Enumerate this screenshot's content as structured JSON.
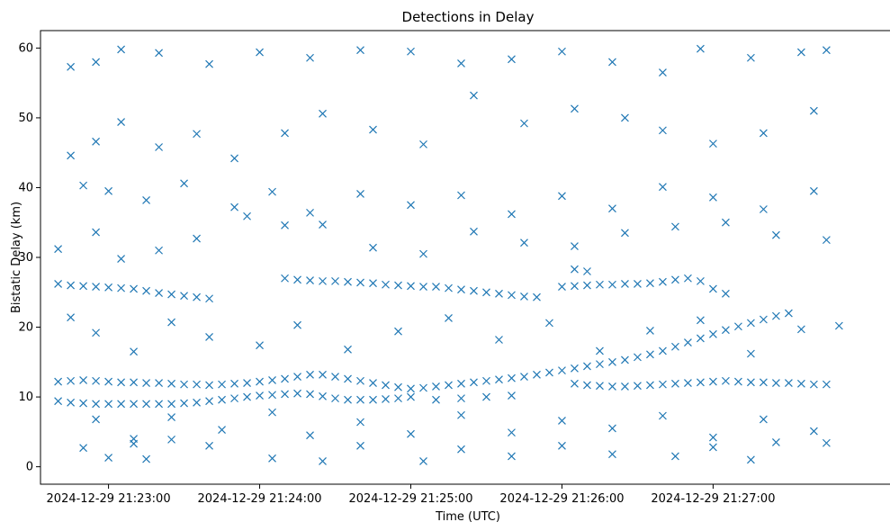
{
  "chart_data": {
    "type": "scatter",
    "title": "Detections in Delay",
    "xlabel": "Time (UTC)",
    "ylabel": "Bistatic Delay (km)",
    "x_tick_labels": [
      "2024-12-29 21:23:00",
      "2024-12-29 21:24:00",
      "2024-12-29 21:25:00",
      "2024-12-29 21:26:00",
      "2024-12-29 21:27:00"
    ],
    "y_ticks": [
      0,
      10,
      20,
      30,
      40,
      50,
      60
    ],
    "xlim": [
      "2024-12-29 21:22:33",
      "2024-12-29 21:27:52"
    ],
    "ylim": [
      -2.5,
      62.5
    ],
    "grid": false,
    "marker": "x",
    "color": "#1f77b4",
    "series": [
      {
        "points": [
          [
            "21:22:40",
            12.2
          ],
          [
            "21:22:45",
            12.3
          ],
          [
            "21:22:50",
            12.4
          ],
          [
            "21:22:55",
            12.3
          ],
          [
            "21:23:00",
            12.2
          ],
          [
            "21:23:05",
            12.1
          ],
          [
            "21:23:10",
            12.1
          ],
          [
            "21:23:15",
            12.0
          ],
          [
            "21:23:20",
            12.0
          ],
          [
            "21:23:25",
            11.9
          ],
          [
            "21:23:30",
            11.8
          ],
          [
            "21:23:35",
            11.8
          ],
          [
            "21:23:40",
            11.7
          ],
          [
            "21:23:45",
            11.8
          ],
          [
            "21:23:50",
            11.9
          ],
          [
            "21:23:55",
            12.0
          ],
          [
            "21:24:00",
            12.2
          ],
          [
            "21:24:05",
            12.4
          ],
          [
            "21:24:10",
            12.6
          ],
          [
            "21:24:15",
            12.9
          ],
          [
            "21:24:20",
            13.2
          ],
          [
            "21:24:25",
            13.2
          ],
          [
            "21:24:30",
            12.9
          ],
          [
            "21:24:35",
            12.6
          ],
          [
            "21:24:40",
            12.3
          ],
          [
            "21:24:45",
            12.0
          ],
          [
            "21:24:50",
            11.7
          ],
          [
            "21:24:55",
            11.4
          ],
          [
            "21:25:00",
            11.2
          ],
          [
            "21:25:05",
            11.3
          ],
          [
            "21:25:10",
            11.5
          ],
          [
            "21:25:15",
            11.7
          ],
          [
            "21:25:20",
            11.9
          ],
          [
            "21:25:25",
            12.1
          ],
          [
            "21:25:30",
            12.3
          ],
          [
            "21:25:35",
            12.5
          ],
          [
            "21:25:40",
            12.7
          ],
          [
            "21:25:45",
            12.9
          ],
          [
            "21:25:50",
            13.2
          ],
          [
            "21:25:55",
            13.5
          ],
          [
            "21:26:00",
            13.8
          ],
          [
            "21:26:05",
            14.1
          ],
          [
            "21:26:10",
            14.4
          ],
          [
            "21:26:15",
            14.7
          ],
          [
            "21:26:20",
            15.0
          ],
          [
            "21:26:25",
            15.3
          ],
          [
            "21:26:30",
            15.7
          ],
          [
            "21:26:35",
            16.1
          ],
          [
            "21:26:40",
            16.6
          ],
          [
            "21:26:45",
            17.2
          ],
          [
            "21:26:50",
            17.8
          ],
          [
            "21:26:55",
            18.4
          ],
          [
            "21:27:00",
            19.0
          ],
          [
            "21:27:05",
            19.6
          ],
          [
            "21:27:10",
            20.1
          ],
          [
            "21:27:15",
            20.6
          ],
          [
            "21:27:20",
            21.1
          ],
          [
            "21:27:25",
            21.6
          ],
          [
            "21:27:30",
            22.0
          ],
          [
            "21:26:05",
            11.9
          ],
          [
            "21:26:10",
            11.7
          ],
          [
            "21:26:15",
            11.6
          ],
          [
            "21:26:20",
            11.5
          ],
          [
            "21:26:25",
            11.5
          ],
          [
            "21:26:30",
            11.6
          ],
          [
            "21:26:35",
            11.7
          ],
          [
            "21:26:40",
            11.8
          ],
          [
            "21:26:45",
            11.9
          ],
          [
            "21:26:50",
            12.0
          ],
          [
            "21:26:55",
            12.1
          ],
          [
            "21:27:00",
            12.2
          ],
          [
            "21:27:05",
            12.3
          ],
          [
            "21:27:10",
            12.2
          ],
          [
            "21:27:15",
            12.1
          ],
          [
            "21:27:20",
            12.1
          ],
          [
            "21:27:25",
            12.0
          ],
          [
            "21:27:30",
            12.0
          ],
          [
            "21:27:35",
            11.9
          ],
          [
            "21:27:40",
            11.8
          ],
          [
            "21:27:45",
            11.8
          ],
          [
            "21:22:40",
            9.4
          ],
          [
            "21:22:45",
            9.2
          ],
          [
            "21:22:50",
            9.1
          ],
          [
            "21:22:55",
            9.0
          ],
          [
            "21:23:00",
            9.0
          ],
          [
            "21:23:05",
            9.0
          ],
          [
            "21:23:10",
            9.0
          ],
          [
            "21:23:15",
            9.0
          ],
          [
            "21:23:20",
            9.0
          ],
          [
            "21:23:25",
            9.0
          ],
          [
            "21:23:30",
            9.1
          ],
          [
            "21:23:35",
            9.2
          ],
          [
            "21:23:40",
            9.4
          ],
          [
            "21:23:45",
            9.6
          ],
          [
            "21:23:50",
            9.8
          ],
          [
            "21:23:55",
            10.0
          ],
          [
            "21:24:00",
            10.2
          ],
          [
            "21:24:05",
            10.3
          ],
          [
            "21:24:10",
            10.4
          ],
          [
            "21:24:15",
            10.5
          ],
          [
            "21:24:20",
            10.4
          ],
          [
            "21:24:25",
            10.1
          ],
          [
            "21:24:30",
            9.8
          ],
          [
            "21:24:35",
            9.6
          ],
          [
            "21:24:40",
            9.6
          ],
          [
            "21:24:45",
            9.6
          ],
          [
            "21:24:50",
            9.7
          ],
          [
            "21:24:55",
            9.8
          ],
          [
            "21:25:00",
            10.0
          ],
          [
            "21:25:10",
            9.6
          ],
          [
            "21:25:20",
            9.8
          ],
          [
            "21:25:30",
            10.0
          ],
          [
            "21:25:40",
            10.2
          ],
          [
            "21:22:40",
            26.2
          ],
          [
            "21:22:45",
            26.0
          ],
          [
            "21:22:50",
            25.9
          ],
          [
            "21:22:55",
            25.8
          ],
          [
            "21:23:00",
            25.7
          ],
          [
            "21:23:05",
            25.6
          ],
          [
            "21:23:10",
            25.5
          ],
          [
            "21:23:15",
            25.2
          ],
          [
            "21:23:20",
            24.9
          ],
          [
            "21:23:25",
            24.7
          ],
          [
            "21:23:30",
            24.5
          ],
          [
            "21:23:35",
            24.3
          ],
          [
            "21:23:40",
            24.1
          ],
          [
            "21:24:10",
            27.0
          ],
          [
            "21:24:15",
            26.8
          ],
          [
            "21:24:20",
            26.7
          ],
          [
            "21:24:25",
            26.6
          ],
          [
            "21:24:30",
            26.6
          ],
          [
            "21:24:35",
            26.5
          ],
          [
            "21:24:40",
            26.4
          ],
          [
            "21:24:45",
            26.3
          ],
          [
            "21:24:50",
            26.1
          ],
          [
            "21:24:55",
            26.0
          ],
          [
            "21:25:00",
            25.9
          ],
          [
            "21:25:05",
            25.8
          ],
          [
            "21:25:10",
            25.8
          ],
          [
            "21:25:15",
            25.6
          ],
          [
            "21:25:20",
            25.4
          ],
          [
            "21:25:25",
            25.2
          ],
          [
            "21:25:30",
            25.0
          ],
          [
            "21:25:35",
            24.8
          ],
          [
            "21:25:40",
            24.6
          ],
          [
            "21:25:45",
            24.4
          ],
          [
            "21:25:50",
            24.3
          ],
          [
            "21:26:00",
            25.8
          ],
          [
            "21:26:05",
            25.9
          ],
          [
            "21:26:10",
            26.0
          ],
          [
            "21:26:15",
            26.1
          ],
          [
            "21:26:20",
            26.1
          ],
          [
            "21:26:25",
            26.2
          ],
          [
            "21:26:30",
            26.2
          ],
          [
            "21:26:35",
            26.3
          ],
          [
            "21:26:40",
            26.5
          ],
          [
            "21:26:45",
            26.8
          ],
          [
            "21:26:50",
            27.0
          ],
          [
            "21:26:55",
            26.6
          ],
          [
            "21:27:00",
            25.5
          ],
          [
            "21:27:05",
            24.8
          ],
          [
            "21:26:05",
            28.3
          ],
          [
            "21:26:10",
            28.0
          ],
          [
            "21:22:50",
            2.7
          ],
          [
            "21:23:00",
            1.3
          ],
          [
            "21:23:10",
            3.3
          ],
          [
            "21:23:15",
            1.1
          ],
          [
            "21:23:25",
            3.9
          ],
          [
            "21:23:40",
            3.0
          ],
          [
            "21:24:05",
            1.2
          ],
          [
            "21:24:25",
            0.8
          ],
          [
            "21:24:40",
            3.0
          ],
          [
            "21:25:05",
            0.8
          ],
          [
            "21:25:20",
            2.5
          ],
          [
            "21:25:40",
            1.5
          ],
          [
            "21:26:00",
            3.0
          ],
          [
            "21:26:20",
            1.8
          ],
          [
            "21:26:45",
            1.5
          ],
          [
            "21:27:00",
            2.8
          ],
          [
            "21:27:15",
            1.0
          ],
          [
            "21:27:25",
            3.5
          ],
          [
            "21:27:45",
            3.4
          ],
          [
            "21:22:45",
            57.3
          ],
          [
            "21:22:55",
            58.0
          ],
          [
            "21:23:05",
            59.8
          ],
          [
            "21:23:20",
            59.3
          ],
          [
            "21:23:40",
            57.7
          ],
          [
            "21:24:00",
            59.4
          ],
          [
            "21:24:20",
            58.6
          ],
          [
            "21:24:40",
            59.7
          ],
          [
            "21:25:00",
            59.5
          ],
          [
            "21:25:20",
            57.8
          ],
          [
            "21:25:40",
            58.4
          ],
          [
            "21:26:00",
            59.5
          ],
          [
            "21:26:20",
            58.0
          ],
          [
            "21:26:40",
            56.5
          ],
          [
            "21:26:55",
            59.9
          ],
          [
            "21:27:15",
            58.6
          ],
          [
            "21:27:35",
            59.4
          ],
          [
            "21:27:45",
            59.7
          ],
          [
            "21:22:45",
            44.6
          ],
          [
            "21:22:55",
            46.6
          ],
          [
            "21:23:05",
            49.4
          ],
          [
            "21:23:20",
            45.8
          ],
          [
            "21:23:35",
            47.7
          ],
          [
            "21:23:50",
            44.2
          ],
          [
            "21:24:10",
            47.8
          ],
          [
            "21:24:25",
            50.6
          ],
          [
            "21:24:45",
            48.3
          ],
          [
            "21:25:05",
            46.2
          ],
          [
            "21:25:25",
            53.2
          ],
          [
            "21:25:45",
            49.2
          ],
          [
            "21:26:05",
            51.3
          ],
          [
            "21:26:25",
            50.0
          ],
          [
            "21:26:40",
            48.2
          ],
          [
            "21:27:00",
            46.3
          ],
          [
            "21:27:20",
            47.8
          ],
          [
            "21:27:40",
            51.0
          ],
          [
            "21:22:50",
            40.3
          ],
          [
            "21:23:00",
            39.5
          ],
          [
            "21:23:15",
            38.2
          ],
          [
            "21:23:30",
            40.6
          ],
          [
            "21:23:50",
            37.2
          ],
          [
            "21:24:05",
            39.4
          ],
          [
            "21:24:20",
            36.4
          ],
          [
            "21:24:40",
            39.1
          ],
          [
            "21:25:00",
            37.5
          ],
          [
            "21:25:20",
            38.9
          ],
          [
            "21:25:40",
            36.2
          ],
          [
            "21:26:00",
            38.8
          ],
          [
            "21:26:20",
            37.0
          ],
          [
            "21:26:40",
            40.1
          ],
          [
            "21:27:00",
            38.6
          ],
          [
            "21:27:20",
            36.9
          ],
          [
            "21:27:40",
            39.5
          ],
          [
            "21:22:40",
            31.2
          ],
          [
            "21:22:55",
            33.6
          ],
          [
            "21:23:05",
            29.8
          ],
          [
            "21:23:20",
            31.0
          ],
          [
            "21:23:35",
            32.7
          ],
          [
            "21:23:55",
            35.9
          ],
          [
            "21:24:10",
            34.6
          ],
          [
            "21:24:25",
            34.7
          ],
          [
            "21:24:45",
            31.4
          ],
          [
            "21:25:05",
            30.5
          ],
          [
            "21:25:25",
            33.7
          ],
          [
            "21:25:45",
            32.1
          ],
          [
            "21:26:05",
            31.6
          ],
          [
            "21:26:25",
            33.5
          ],
          [
            "21:26:45",
            34.4
          ],
          [
            "21:27:05",
            35.0
          ],
          [
            "21:27:25",
            33.2
          ],
          [
            "21:27:45",
            32.5
          ],
          [
            "21:22:45",
            21.4
          ],
          [
            "21:22:55",
            19.2
          ],
          [
            "21:23:10",
            16.5
          ],
          [
            "21:23:25",
            20.7
          ],
          [
            "21:23:40",
            18.6
          ],
          [
            "21:24:00",
            17.4
          ],
          [
            "21:24:15",
            20.3
          ],
          [
            "21:24:35",
            16.8
          ],
          [
            "21:24:55",
            19.4
          ],
          [
            "21:25:15",
            21.3
          ],
          [
            "21:25:35",
            18.2
          ],
          [
            "21:25:55",
            20.6
          ],
          [
            "21:26:15",
            16.6
          ],
          [
            "21:26:35",
            19.5
          ],
          [
            "21:26:55",
            21.0
          ],
          [
            "21:27:15",
            16.2
          ],
          [
            "21:27:35",
            19.7
          ],
          [
            "21:27:50",
            20.2
          ],
          [
            "21:22:55",
            6.8
          ],
          [
            "21:23:10",
            4.0
          ],
          [
            "21:23:25",
            7.1
          ],
          [
            "21:23:45",
            5.3
          ],
          [
            "21:24:05",
            7.8
          ],
          [
            "21:24:20",
            4.5
          ],
          [
            "21:24:40",
            6.4
          ],
          [
            "21:25:00",
            4.7
          ],
          [
            "21:25:20",
            7.4
          ],
          [
            "21:25:40",
            4.9
          ],
          [
            "21:26:00",
            6.6
          ],
          [
            "21:26:20",
            5.5
          ],
          [
            "21:26:40",
            7.3
          ],
          [
            "21:27:00",
            4.2
          ],
          [
            "21:27:20",
            6.8
          ],
          [
            "21:27:40",
            5.1
          ]
        ]
      }
    ]
  }
}
